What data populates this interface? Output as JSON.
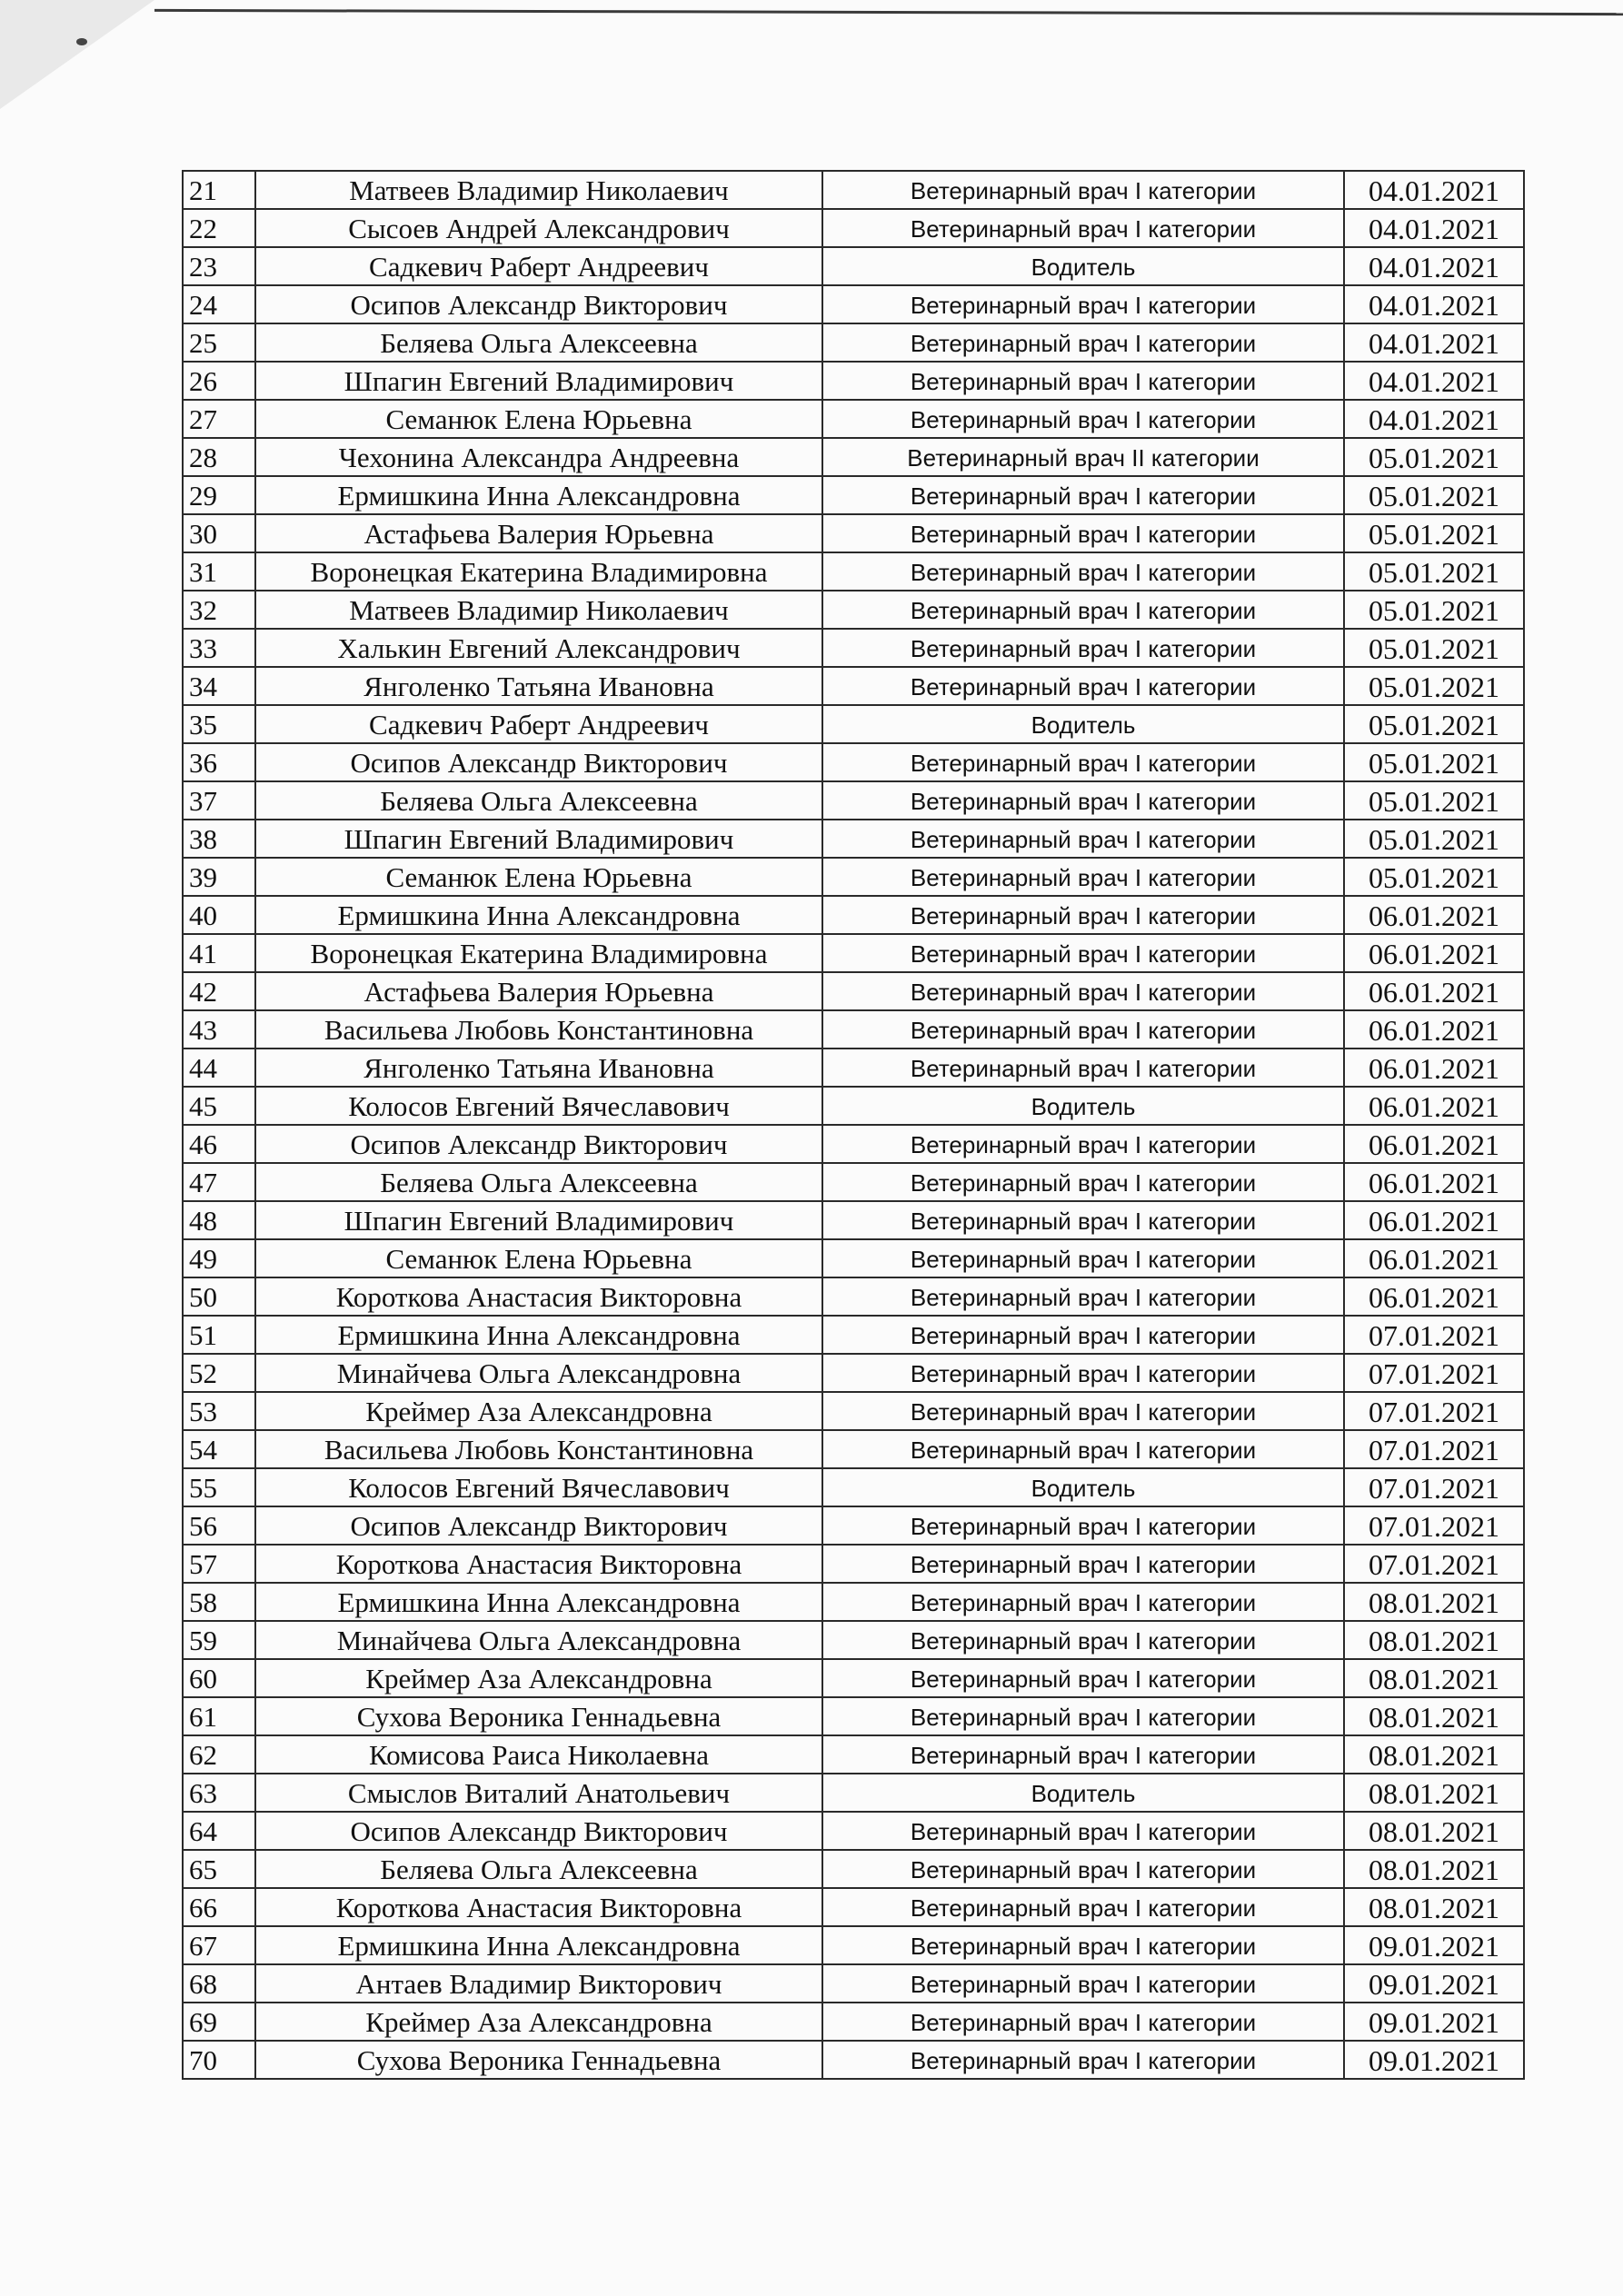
{
  "rows": [
    {
      "n": "21",
      "name": "Матвеев Владимир Николаевич",
      "position": "Ветеринарный врач I  категории",
      "date": "04.01.2021"
    },
    {
      "n": "22",
      "name": "Сысоев Андрей Александрович",
      "position": "Ветеринарный врач I  категории",
      "date": "04.01.2021"
    },
    {
      "n": "23",
      "name": "Садкевич Раберт Андреевич",
      "position": "Водитель",
      "date": "04.01.2021"
    },
    {
      "n": "24",
      "name": "Осипов Александр Викторович",
      "position": "Ветеринарный врач I  категории",
      "date": "04.01.2021"
    },
    {
      "n": "25",
      "name": "Беляева Ольга Алексеевна",
      "position": "Ветеринарный врач I  категории",
      "date": "04.01.2021"
    },
    {
      "n": "26",
      "name": "Шпагин Евгений Владимирович",
      "position": "Ветеринарный врач I  категории",
      "date": "04.01.2021"
    },
    {
      "n": "27",
      "name": "Семанюк Елена Юрьевна",
      "position": "Ветеринарный врач I  категории",
      "date": "04.01.2021"
    },
    {
      "n": "28",
      "name": "Чехонина Александра Андреевна",
      "position": "Ветеринарный врач II  категории",
      "date": "05.01.2021"
    },
    {
      "n": "29",
      "name": "Ермишкина Инна Александровна",
      "position": "Ветеринарный врач I  категории",
      "date": "05.01.2021"
    },
    {
      "n": "30",
      "name": "Астафьева Валерия Юрьевна",
      "position": "Ветеринарный врач I  категории",
      "date": "05.01.2021"
    },
    {
      "n": "31",
      "name": "Воронецкая Екатерина Владимировна",
      "position": "Ветеринарный врач I  категории",
      "date": "05.01.2021"
    },
    {
      "n": "32",
      "name": "Матвеев Владимир Николаевич",
      "position": "Ветеринарный врач I  категории",
      "date": "05.01.2021"
    },
    {
      "n": "33",
      "name": "Халькин Евгений Александрович",
      "position": "Ветеринарный врач I  категории",
      "date": "05.01.2021"
    },
    {
      "n": "34",
      "name": "Янголенко Татьяна Ивановна",
      "position": "Ветеринарный врач I  категории",
      "date": "05.01.2021"
    },
    {
      "n": "35",
      "name": "Садкевич Раберт Андреевич",
      "position": "Водитель",
      "date": "05.01.2021"
    },
    {
      "n": "36",
      "name": "Осипов Александр Викторович",
      "position": "Ветеринарный врач I  категории",
      "date": "05.01.2021"
    },
    {
      "n": "37",
      "name": "Беляева Ольга Алексеевна",
      "position": "Ветеринарный врач I  категории",
      "date": "05.01.2021"
    },
    {
      "n": "38",
      "name": "Шпагин Евгений Владимирович",
      "position": "Ветеринарный врач I  категории",
      "date": "05.01.2021"
    },
    {
      "n": "39",
      "name": "Семанюк Елена Юрьевна",
      "position": "Ветеринарный врач I  категории",
      "date": "05.01.2021"
    },
    {
      "n": "40",
      "name": "Ермишкина Инна Александровна",
      "position": "Ветеринарный врач I  категории",
      "date": "06.01.2021"
    },
    {
      "n": "41",
      "name": "Воронецкая Екатерина Владимировна",
      "position": "Ветеринарный врач I  категории",
      "date": "06.01.2021"
    },
    {
      "n": "42",
      "name": "Астафьева Валерия Юрьевна",
      "position": "Ветеринарный врач I  категории",
      "date": "06.01.2021"
    },
    {
      "n": "43",
      "name": "Васильева Любовь Константиновна",
      "position": "Ветеринарный врач I  категории",
      "date": "06.01.2021"
    },
    {
      "n": "44",
      "name": "Янголенко Татьяна Ивановна",
      "position": "Ветеринарный врач I  категории",
      "date": "06.01.2021"
    },
    {
      "n": "45",
      "name": "Колосов Евгений Вячеславович",
      "position": "Водитель",
      "date": "06.01.2021"
    },
    {
      "n": "46",
      "name": "Осипов Александр Викторович",
      "position": "Ветеринарный врач I  категории",
      "date": "06.01.2021"
    },
    {
      "n": "47",
      "name": "Беляева Ольга Алексеевна",
      "position": "Ветеринарный врач I  категории",
      "date": "06.01.2021"
    },
    {
      "n": "48",
      "name": "Шпагин Евгений Владимирович",
      "position": "Ветеринарный врач I  категории",
      "date": "06.01.2021"
    },
    {
      "n": "49",
      "name": "Семанюк Елена Юрьевна",
      "position": "Ветеринарный врач I  категории",
      "date": "06.01.2021"
    },
    {
      "n": "50",
      "name": "Короткова Анастасия Викторовна",
      "position": "Ветеринарный врач I  категории",
      "date": "06.01.2021"
    },
    {
      "n": "51",
      "name": "Ермишкина Инна Александровна",
      "position": "Ветеринарный врач I  категории",
      "date": "07.01.2021"
    },
    {
      "n": "52",
      "name": "Минайчева Ольга Александровна",
      "position": "Ветеринарный врач I  категории",
      "date": "07.01.2021"
    },
    {
      "n": "53",
      "name": "Креймер Аза Александровна",
      "position": "Ветеринарный врач I  категории",
      "date": "07.01.2021"
    },
    {
      "n": "54",
      "name": "Васильева Любовь Константиновна",
      "position": "Ветеринарный врач I  категории",
      "date": "07.01.2021"
    },
    {
      "n": "55",
      "name": "Колосов Евгений Вячеславович",
      "position": "Водитель",
      "date": "07.01.2021"
    },
    {
      "n": "56",
      "name": "Осипов Александр Викторович",
      "position": "Ветеринарный врач I  категории",
      "date": "07.01.2021"
    },
    {
      "n": "57",
      "name": "Короткова Анастасия Викторовна",
      "position": "Ветеринарный врач I  категории",
      "date": "07.01.2021"
    },
    {
      "n": "58",
      "name": "Ермишкина Инна Александровна",
      "position": "Ветеринарный врач I  категории",
      "date": "08.01.2021"
    },
    {
      "n": "59",
      "name": "Минайчева Ольга Александровна",
      "position": "Ветеринарный врач I  категории",
      "date": "08.01.2021"
    },
    {
      "n": "60",
      "name": "Креймер Аза Александровна",
      "position": "Ветеринарный врач I  категории",
      "date": "08.01.2021"
    },
    {
      "n": "61",
      "name": "Сухова Вероника Геннадьевна",
      "position": "Ветеринарный врач I  категории",
      "date": "08.01.2021"
    },
    {
      "n": "62",
      "name": "Комисова Раиса Николаевна",
      "position": "Ветеринарный врач I  категории",
      "date": "08.01.2021"
    },
    {
      "n": "63",
      "name": "Смыслов Виталий Анатольевич",
      "position": "Водитель",
      "date": "08.01.2021"
    },
    {
      "n": "64",
      "name": "Осипов Александр Викторович",
      "position": "Ветеринарный врач I  категории",
      "date": "08.01.2021"
    },
    {
      "n": "65",
      "name": "Беляева Ольга Алексеевна",
      "position": "Ветеринарный врач I  категории",
      "date": "08.01.2021"
    },
    {
      "n": "66",
      "name": "Короткова Анастасия Викторовна",
      "position": "Ветеринарный врач I  категории",
      "date": "08.01.2021"
    },
    {
      "n": "67",
      "name": "Ермишкина Инна Александровна",
      "position": "Ветеринарный врач I  категории",
      "date": "09.01.2021"
    },
    {
      "n": "68",
      "name": "Антаев Владимир Викторович",
      "position": "Ветеринарный врач I  категории",
      "date": "09.01.2021"
    },
    {
      "n": "69",
      "name": "Креймер Аза Александровна",
      "position": "Ветеринарный врач I  категории",
      "date": "09.01.2021"
    },
    {
      "n": "70",
      "name": "Сухова Вероника Геннадьевна",
      "position": "Ветеринарный врач I  категории",
      "date": "09.01.2021"
    }
  ]
}
